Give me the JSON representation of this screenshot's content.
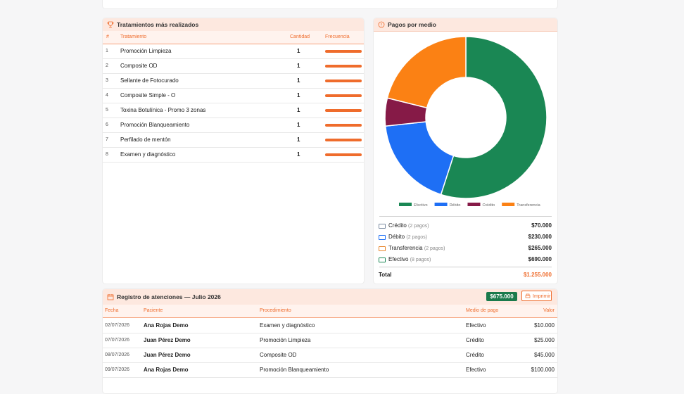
{
  "treatments": {
    "title": "Tratamientos más realizados",
    "columns": [
      "#",
      "Tratamiento",
      "Cantidad",
      "Frecuencia"
    ],
    "rows": [
      [
        "1",
        "Promoción Limpieza",
        1
      ],
      [
        "2",
        "Composite OD",
        1
      ],
      [
        "3",
        "Sellante de Fotocurado",
        1
      ],
      [
        "4",
        "Composite Simple - O",
        1
      ],
      [
        "5",
        "Toxina Botulínica - Promo 3 zonas",
        1
      ],
      [
        "6",
        "Promoción Blanqueamiento",
        1
      ],
      [
        "7",
        "Perfilado de mentón",
        1
      ],
      [
        "8",
        "Examen y diagnóstico",
        1
      ]
    ]
  },
  "payments": {
    "title": "Pagos por medio",
    "rows": [
      {
        "label": "Crédito",
        "count": "(2 pagos)",
        "amount": "$70.000"
      },
      {
        "label": "Débito",
        "count": "(2 pagos)",
        "amount": "$230.000"
      },
      {
        "label": "Transferencia",
        "count": "(2 pagos)",
        "amount": "$265.000"
      },
      {
        "label": "Efectivo",
        "count": "(8 pagos)",
        "amount": "$690.000"
      }
    ],
    "total_label": "Total",
    "total": "$1.255.000"
  },
  "chart_data": {
    "type": "pie",
    "categories": [
      "Efectivo",
      "Débito",
      "Crédito",
      "Transferencia"
    ],
    "values": [
      690000,
      230000,
      70000,
      265000
    ],
    "colors": [
      "#1a8754",
      "#1e6ff5",
      "#861a47",
      "#fb8114"
    ],
    "donut": true,
    "legend": "bottom"
  },
  "register": {
    "title": "Registro de atenciones — Julio 2026",
    "badge": "$675.000",
    "print": "Imprimir",
    "columns": [
      "Fecha",
      "Paciente",
      "Procedimiento",
      "Medio de pago",
      "Valor"
    ],
    "rows": [
      [
        "02/07/2026",
        "Ana Rojas Demo",
        "Examen y diagnóstico",
        "Efectivo",
        "$10.000"
      ],
      [
        "07/07/2026",
        "Juan Pérez Demo",
        "Promoción Limpieza",
        "Crédito",
        "$25.000"
      ],
      [
        "08/07/2026",
        "Juan Pérez Demo",
        "Composite OD",
        "Crédito",
        "$45.000"
      ],
      [
        "09/07/2026",
        "Ana Rojas Demo",
        "Promoción Blanqueamiento",
        "Efectivo",
        "$100.000"
      ]
    ]
  }
}
